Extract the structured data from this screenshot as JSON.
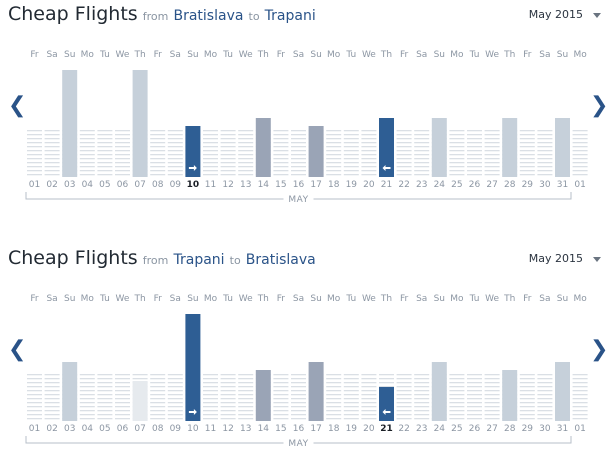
{
  "chart_data": [
    {
      "type": "bar",
      "title": "Cheap Flights from Bratislava to Trapani",
      "month": "May 2015",
      "categories": [
        "01",
        "02",
        "03",
        "04",
        "05",
        "06",
        "07",
        "08",
        "09",
        "10",
        "11",
        "12",
        "13",
        "14",
        "15",
        "16",
        "17",
        "18",
        "19",
        "20",
        "21",
        "22",
        "23",
        "24",
        "25",
        "26",
        "27",
        "28",
        "29",
        "30",
        "31",
        "01"
      ],
      "weekdays": [
        "Fr",
        "Sa",
        "Su",
        "Mo",
        "Tu",
        "We",
        "Th",
        "Fr",
        "Sa",
        "Su",
        "Mo",
        "Tu",
        "We",
        "Th",
        "Fr",
        "Sa",
        "Su",
        "Mo",
        "Tu",
        "We",
        "Th",
        "Fr",
        "Sa",
        "Su",
        "Mo",
        "Tu",
        "We",
        "Th",
        "Fr",
        "Sa",
        "Su",
        "Mo"
      ],
      "values": [
        0,
        0,
        1.0,
        0,
        0,
        0,
        1.0,
        0,
        0,
        0.48,
        0,
        0,
        0,
        0.55,
        0,
        0,
        0.48,
        0,
        0,
        0,
        0.55,
        0,
        0,
        0.55,
        0,
        0,
        0,
        0.55,
        0,
        0,
        0.55,
        0
      ],
      "value_scale": "relative price level (unlabeled)",
      "selected": [
        {
          "index": 9,
          "direction": "outbound"
        },
        {
          "index": 20,
          "direction": "return"
        }
      ],
      "xlabel": "MAY"
    },
    {
      "type": "bar",
      "title": "Cheap Flights from Trapani to Bratislava",
      "month": "May 2015",
      "categories": [
        "01",
        "02",
        "03",
        "04",
        "05",
        "06",
        "07",
        "08",
        "09",
        "10",
        "11",
        "12",
        "13",
        "14",
        "15",
        "16",
        "17",
        "18",
        "19",
        "20",
        "21",
        "22",
        "23",
        "24",
        "25",
        "26",
        "27",
        "28",
        "29",
        "30",
        "31",
        "01"
      ],
      "weekdays": [
        "Fr",
        "Sa",
        "Su",
        "Mo",
        "Tu",
        "We",
        "Th",
        "Fr",
        "Sa",
        "Su",
        "Mo",
        "Tu",
        "We",
        "Th",
        "Fr",
        "Sa",
        "Su",
        "Mo",
        "Tu",
        "We",
        "Th",
        "Fr",
        "Sa",
        "Su",
        "Mo",
        "Tu",
        "We",
        "Th",
        "Fr",
        "Sa",
        "Su",
        "Mo"
      ],
      "values": [
        0,
        0,
        0.55,
        0,
        0,
        0,
        0.37,
        0,
        0,
        1.0,
        0,
        0,
        0,
        0.48,
        0,
        0,
        0.55,
        0,
        0,
        0,
        0.32,
        0,
        0,
        0.55,
        0,
        0,
        0,
        0.48,
        0,
        0,
        0.55,
        0
      ],
      "value_scale": "relative price level (unlabeled)",
      "selected": [
        {
          "index": 9,
          "direction": "outbound"
        },
        {
          "index": 20,
          "direction": "return"
        }
      ],
      "xlabel": "MAY"
    }
  ],
  "sections": [
    {
      "title": "Cheap Flights",
      "from_word": "from",
      "origin": "Bratislava",
      "to_word": "to",
      "destination": "Trapani",
      "month_label": "May 2015"
    },
    {
      "title": "Cheap Flights",
      "from_word": "from",
      "origin": "Trapani",
      "to_word": "to",
      "destination": "Bratislava",
      "month_label": "May 2015"
    }
  ],
  "nav": {
    "prev": "❮",
    "next": "❯"
  },
  "colors": {
    "bar_light": "#c6d0da",
    "bar_light_faint": "#e6eaee",
    "bar_mid": "#9aa4b6",
    "bar_selected": "#2e5e94",
    "bar_return": "#2e5e94",
    "grid_line": "#dadfe5",
    "text_muted": "#8c96a3",
    "link": "#2a5388"
  }
}
